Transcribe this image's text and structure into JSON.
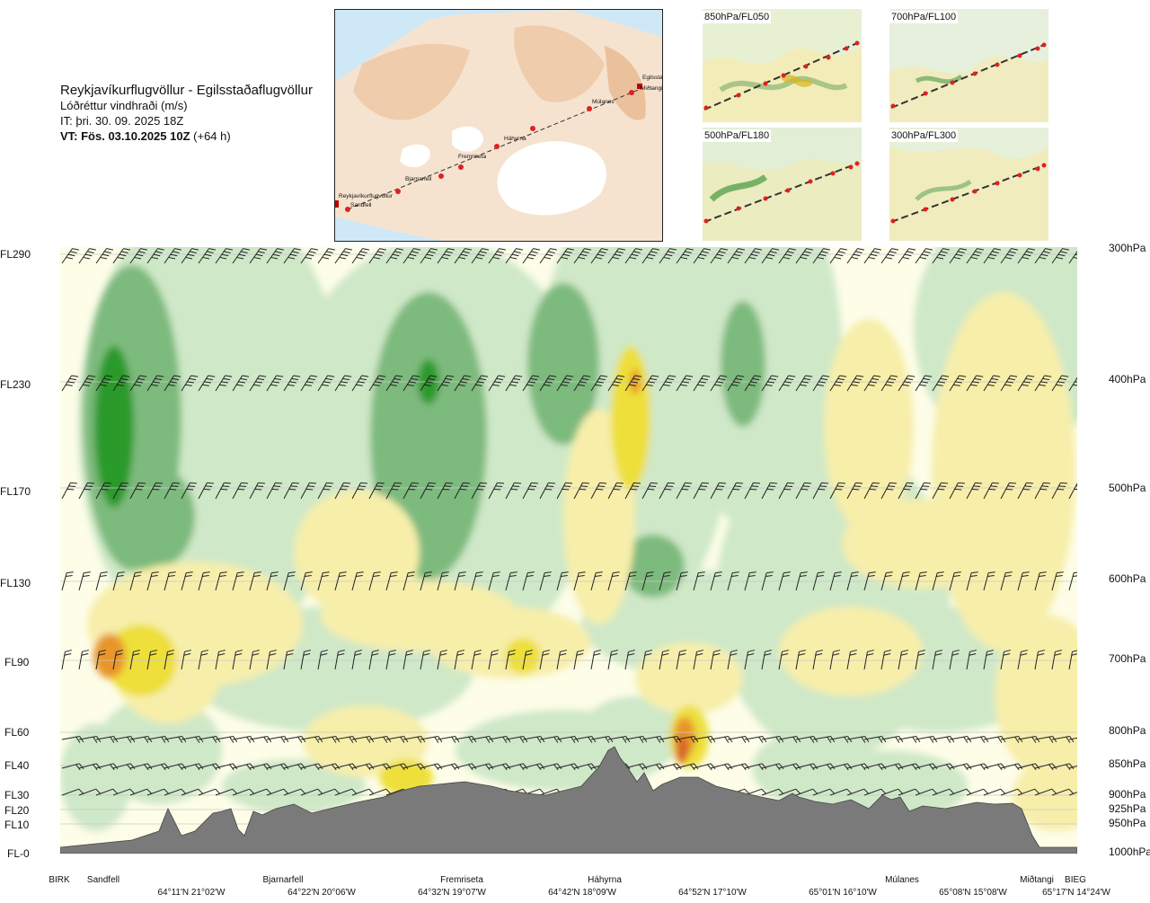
{
  "title": {
    "route": "Reykjavíkurflugvöllur - Egilsstaðaflugvöllur",
    "variable": "Lóðréttur vindhraði (m/s)",
    "issue_time": "IT: þri. 30. 09. 2025 18Z",
    "valid_time_bold": "VT: Fös. 03.10.2025 10Z",
    "valid_time_offset": "(+64 h)"
  },
  "map": {
    "waypoints": [
      "Egilsstaðir",
      "Miðtangi",
      "Múlanes",
      "Háhyrna",
      "Fremriseta",
      "Bjarnarfell",
      "Reykjavíkurflugvöllur",
      "Sandfell"
    ]
  },
  "panels": [
    {
      "label": "850hPa/FL050"
    },
    {
      "label": "700hPa/FL100"
    },
    {
      "label": "500hPa/FL180"
    },
    {
      "label": "300hPa/FL300"
    }
  ],
  "chart_data": {
    "type": "heatmap",
    "title": "Lóðréttur vindhraði (m/s)",
    "left_axis_levels": [
      "FL290",
      "FL230",
      "FL170",
      "FL130",
      "FL90",
      "FL60",
      "FL40",
      "FL30",
      "FL20",
      "FL10",
      "FL-0"
    ],
    "right_axis_levels": [
      "300hPa",
      "400hPa",
      "500hPa",
      "600hPa",
      "700hPa",
      "800hPa",
      "850hPa",
      "900hPa",
      "925hPa",
      "950hPa",
      "1000hPa"
    ],
    "x_waypoints": [
      "BIRK",
      "Sandfell",
      "Bjarnarfell",
      "Fremriseta",
      "Háhyrna",
      "Múlanes",
      "Miðtangi",
      "BIEG"
    ],
    "x_coordinates": [
      "64°11'N 21°02'W",
      "64°22'N 20°06'W",
      "64°32'N 19°07'W",
      "64°42'N 18°09'W",
      "64°52'N 17°10'W",
      "65°01'N 16°10'W",
      "65°08'N 15°08'W",
      "65°17'N 14°24'W"
    ],
    "legend": "none",
    "colors": {
      "strong_down": "#2a9a2a",
      "moderate_down": "#7dba7d",
      "weak_down": "#cfe8c8",
      "neutral": "#fdfde8",
      "weak_up": "#f7eeaa",
      "moderate_up": "#eedf3a",
      "strong_up": "#e8952a",
      "very_strong_up": "#d9602a",
      "terrain": "#7a7a7a"
    }
  }
}
